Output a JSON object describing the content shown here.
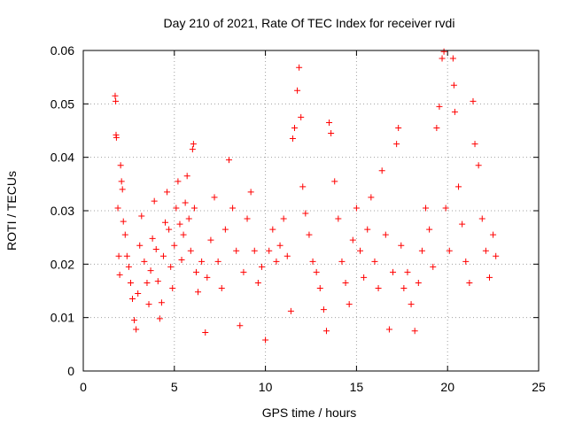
{
  "chart_data": {
    "type": "scatter",
    "title": "Day 210 of 2021, Rate Of TEC Index for receiver rvdi",
    "xlabel": "GPS time / hours",
    "ylabel": "ROTI / TECUs",
    "xlim": [
      0,
      25
    ],
    "ylim": [
      0,
      0.06
    ],
    "x_ticks": [
      "0",
      "5",
      "10",
      "15",
      "20",
      "25"
    ],
    "y_ticks": [
      "0",
      "0.01",
      "0.02",
      "0.03",
      "0.04",
      "0.05",
      "0.06"
    ],
    "grid": true,
    "marker": "plus",
    "color": "#ff0000",
    "series": [
      {
        "points": [
          [
            1.75,
            0.0515
          ],
          [
            1.78,
            0.0505
          ],
          [
            1.8,
            0.0442
          ],
          [
            1.82,
            0.0437
          ],
          [
            1.9,
            0.0305
          ],
          [
            1.95,
            0.0215
          ],
          [
            2.0,
            0.018
          ],
          [
            2.05,
            0.0385
          ],
          [
            2.1,
            0.0355
          ],
          [
            2.15,
            0.034
          ],
          [
            2.2,
            0.028
          ],
          [
            2.3,
            0.0255
          ],
          [
            2.4,
            0.0215
          ],
          [
            2.5,
            0.0195
          ],
          [
            2.6,
            0.0165
          ],
          [
            2.7,
            0.0135
          ],
          [
            2.8,
            0.0095
          ],
          [
            2.9,
            0.0078
          ],
          [
            3.0,
            0.0145
          ],
          [
            3.1,
            0.0235
          ],
          [
            3.2,
            0.029
          ],
          [
            3.35,
            0.0205
          ],
          [
            3.5,
            0.0165
          ],
          [
            3.6,
            0.0125
          ],
          [
            3.7,
            0.0188
          ],
          [
            3.8,
            0.0248
          ],
          [
            3.9,
            0.0318
          ],
          [
            4.0,
            0.0228
          ],
          [
            4.1,
            0.0168
          ],
          [
            4.2,
            0.0098
          ],
          [
            4.3,
            0.0128
          ],
          [
            4.4,
            0.0215
          ],
          [
            4.5,
            0.0278
          ],
          [
            4.6,
            0.0335
          ],
          [
            4.7,
            0.0265
          ],
          [
            4.8,
            0.0195
          ],
          [
            4.9,
            0.0155
          ],
          [
            5.0,
            0.0235
          ],
          [
            5.1,
            0.0305
          ],
          [
            5.2,
            0.0355
          ],
          [
            5.3,
            0.0275
          ],
          [
            5.4,
            0.0208
          ],
          [
            5.5,
            0.0255
          ],
          [
            5.6,
            0.0315
          ],
          [
            5.7,
            0.0365
          ],
          [
            5.8,
            0.0285
          ],
          [
            5.9,
            0.0225
          ],
          [
            6.0,
            0.0415
          ],
          [
            6.05,
            0.0425
          ],
          [
            6.1,
            0.0305
          ],
          [
            6.2,
            0.0185
          ],
          [
            6.3,
            0.0148
          ],
          [
            6.5,
            0.0205
          ],
          [
            6.7,
            0.0072
          ],
          [
            6.8,
            0.0175
          ],
          [
            7.0,
            0.0245
          ],
          [
            7.2,
            0.0325
          ],
          [
            7.4,
            0.0205
          ],
          [
            7.6,
            0.0155
          ],
          [
            7.8,
            0.0265
          ],
          [
            8.0,
            0.0395
          ],
          [
            8.2,
            0.0305
          ],
          [
            8.4,
            0.0225
          ],
          [
            8.6,
            0.0085
          ],
          [
            8.8,
            0.0185
          ],
          [
            9.0,
            0.0285
          ],
          [
            9.2,
            0.0335
          ],
          [
            9.4,
            0.0225
          ],
          [
            9.6,
            0.0165
          ],
          [
            9.8,
            0.0195
          ],
          [
            10.0,
            0.0058
          ],
          [
            10.2,
            0.0225
          ],
          [
            10.4,
            0.0265
          ],
          [
            10.6,
            0.0205
          ],
          [
            10.8,
            0.0235
          ],
          [
            11.0,
            0.0285
          ],
          [
            11.2,
            0.0215
          ],
          [
            11.4,
            0.0112
          ],
          [
            11.5,
            0.0435
          ],
          [
            11.6,
            0.0455
          ],
          [
            11.75,
            0.0525
          ],
          [
            11.85,
            0.0568
          ],
          [
            11.95,
            0.0475
          ],
          [
            12.05,
            0.0345
          ],
          [
            12.2,
            0.0295
          ],
          [
            12.4,
            0.0255
          ],
          [
            12.6,
            0.0205
          ],
          [
            12.8,
            0.0185
          ],
          [
            13.0,
            0.0155
          ],
          [
            13.2,
            0.0115
          ],
          [
            13.35,
            0.0075
          ],
          [
            13.5,
            0.0465
          ],
          [
            13.6,
            0.0445
          ],
          [
            13.8,
            0.0355
          ],
          [
            14.0,
            0.0285
          ],
          [
            14.2,
            0.0205
          ],
          [
            14.4,
            0.0165
          ],
          [
            14.6,
            0.0125
          ],
          [
            14.8,
            0.0245
          ],
          [
            15.0,
            0.0305
          ],
          [
            15.2,
            0.0225
          ],
          [
            15.4,
            0.0175
          ],
          [
            15.6,
            0.0265
          ],
          [
            15.8,
            0.0325
          ],
          [
            16.0,
            0.0205
          ],
          [
            16.2,
            0.0155
          ],
          [
            16.4,
            0.0375
          ],
          [
            16.6,
            0.0255
          ],
          [
            16.8,
            0.0078
          ],
          [
            17.0,
            0.0185
          ],
          [
            17.2,
            0.0425
          ],
          [
            17.3,
            0.0455
          ],
          [
            17.45,
            0.0235
          ],
          [
            17.6,
            0.0155
          ],
          [
            17.8,
            0.0185
          ],
          [
            18.0,
            0.0125
          ],
          [
            18.2,
            0.0075
          ],
          [
            18.4,
            0.0165
          ],
          [
            18.6,
            0.0225
          ],
          [
            18.8,
            0.0305
          ],
          [
            19.0,
            0.0265
          ],
          [
            19.2,
            0.0195
          ],
          [
            19.4,
            0.0455
          ],
          [
            19.55,
            0.0495
          ],
          [
            19.7,
            0.0585
          ],
          [
            19.8,
            0.0598
          ],
          [
            19.9,
            0.0305
          ],
          [
            20.1,
            0.0225
          ],
          [
            20.3,
            0.0585
          ],
          [
            20.35,
            0.0535
          ],
          [
            20.4,
            0.0485
          ],
          [
            20.6,
            0.0345
          ],
          [
            20.8,
            0.0275
          ],
          [
            21.0,
            0.0205
          ],
          [
            21.2,
            0.0165
          ],
          [
            21.4,
            0.0505
          ],
          [
            21.5,
            0.0425
          ],
          [
            21.7,
            0.0385
          ],
          [
            21.9,
            0.0285
          ],
          [
            22.1,
            0.0225
          ],
          [
            22.3,
            0.0175
          ],
          [
            22.5,
            0.0255
          ],
          [
            22.65,
            0.0215
          ]
        ]
      }
    ]
  }
}
